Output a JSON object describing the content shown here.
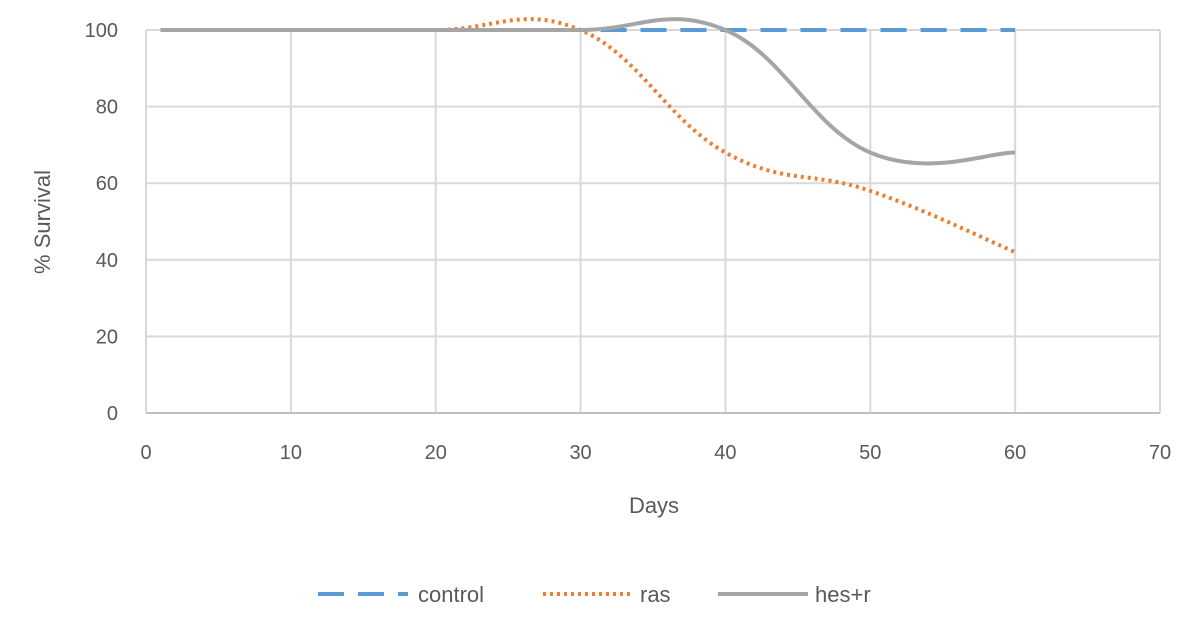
{
  "chart_data": {
    "type": "line",
    "title": "",
    "xlabel": "Days",
    "ylabel": "% Survival",
    "xlim": [
      0,
      70
    ],
    "ylim": [
      0,
      100
    ],
    "x_ticks": [
      "0",
      "10",
      "20",
      "30",
      "40",
      "50",
      "60",
      "70"
    ],
    "y_ticks": [
      "0",
      "20",
      "40",
      "60",
      "80",
      "100"
    ],
    "grid": true,
    "legend_position": "bottom",
    "series": [
      {
        "name": "control",
        "color": "#5b9bd5",
        "dash": "dashed",
        "x": [
          1,
          10,
          20,
          30,
          40,
          50,
          60
        ],
        "y": [
          100,
          100,
          100,
          100,
          100,
          100,
          100
        ]
      },
      {
        "name": "ras",
        "color": "#ed7d31",
        "dash": "dotted",
        "x": [
          1,
          10,
          20,
          30,
          40,
          50,
          60
        ],
        "y": [
          100,
          100,
          100,
          100,
          68,
          58,
          42
        ]
      },
      {
        "name": "hes+r",
        "color": "#a5a5a5",
        "dash": "solid",
        "x": [
          1,
          10,
          20,
          30,
          40,
          50,
          60
        ],
        "y": [
          100,
          100,
          100,
          100,
          100,
          68,
          68
        ]
      }
    ]
  }
}
